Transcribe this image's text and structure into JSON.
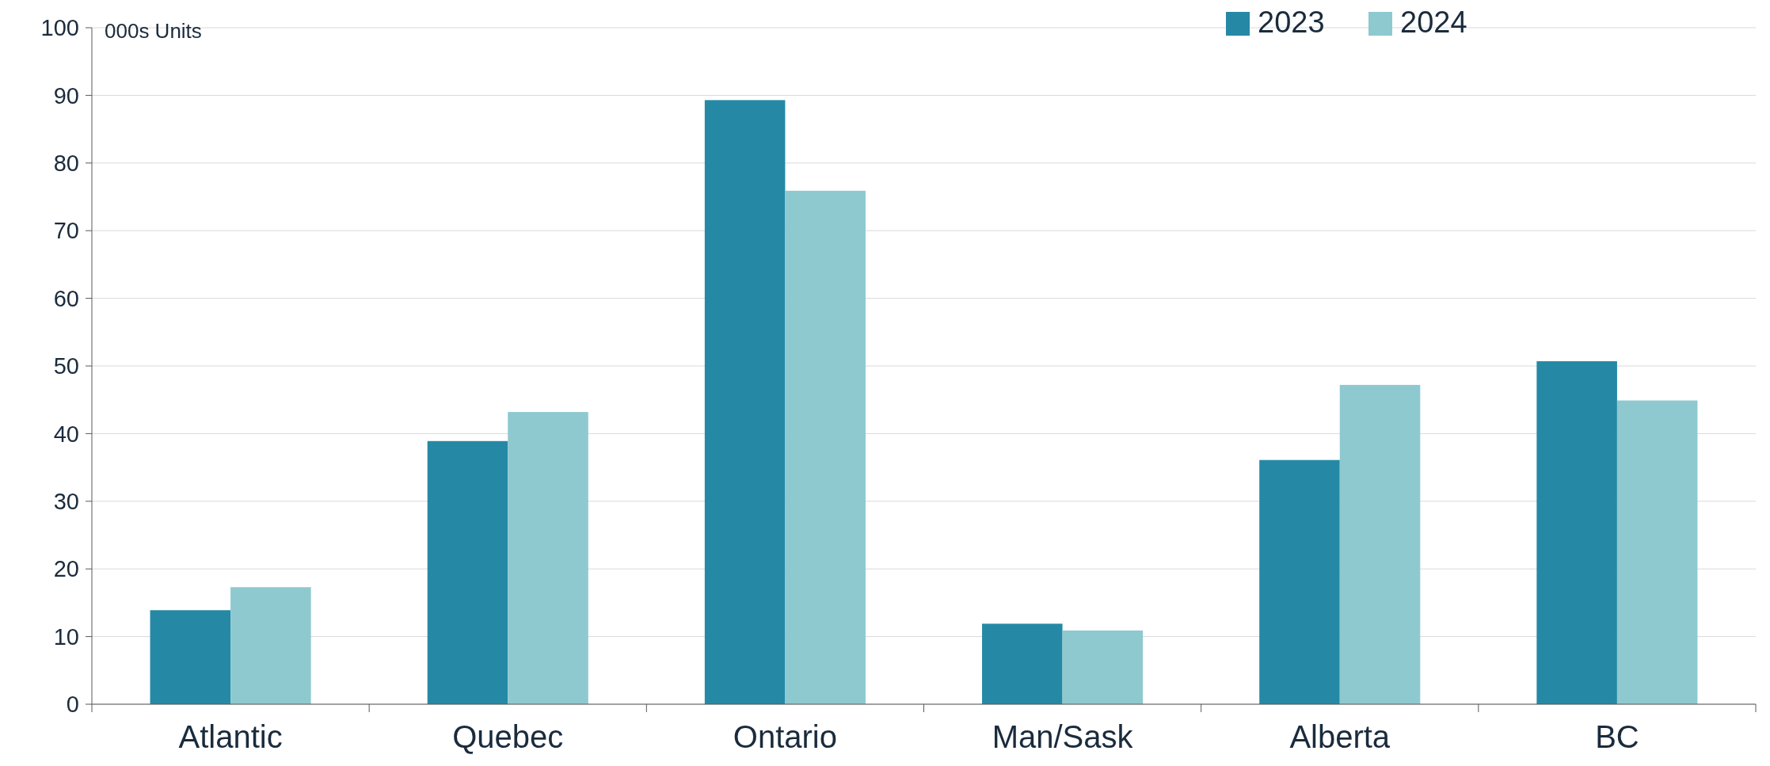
{
  "chart_data": {
    "type": "bar",
    "categories": [
      "Atlantic",
      "Quebec",
      "Ontario",
      "Man/Sask",
      "Alberta",
      "BC"
    ],
    "series": [
      {
        "name": "2023",
        "color": "#2589a6",
        "values": [
          13.9,
          38.9,
          89.3,
          11.9,
          36.1,
          50.7
        ]
      },
      {
        "name": "2024",
        "color": "#8ec9d0",
        "values": [
          17.3,
          43.2,
          75.9,
          10.9,
          47.2,
          44.9
        ]
      }
    ],
    "ylim": [
      0,
      100
    ],
    "yticks": [
      0,
      10,
      20,
      30,
      40,
      50,
      60,
      70,
      80,
      90,
      100
    ],
    "grid": "y",
    "legend": "top right",
    "annotations": [
      "000s Units"
    ]
  }
}
